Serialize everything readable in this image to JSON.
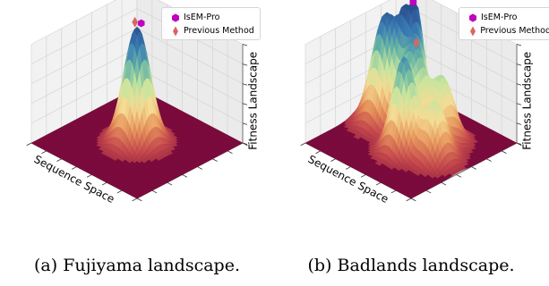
{
  "chart_data": [
    {
      "type": "surface3d",
      "caption": "(a) Fujiyama landscape.",
      "xlabel": "Sequence Space",
      "zlabel": "Fitness Landscape",
      "legend": {
        "placement": "top-right",
        "entries": [
          {
            "name": "IsEM-Pro",
            "marker": "hexagon",
            "color": "#c000c0"
          },
          {
            "name": "Previous Method",
            "marker": "thin-diamond",
            "color": "#d9665f"
          }
        ]
      },
      "peaks": [
        {
          "u": 0.5,
          "v": 0.5,
          "height": 1.0,
          "width": 0.09
        }
      ],
      "points": [
        {
          "series": "IsEM-Pro",
          "u": 0.52,
          "v": 0.48,
          "z": 1.0
        },
        {
          "series": "Previous Method",
          "u": 0.48,
          "v": 0.5,
          "z": 1.0
        }
      ],
      "colormap": [
        "#7b0a3c",
        "#c64a4c",
        "#e89a5e",
        "#f4dc94",
        "#c7e59e",
        "#6ab7a4",
        "#3a7cb4",
        "#2b4f8e"
      ],
      "grid": true
    },
    {
      "type": "surface3d",
      "caption": "(b) Badlands landscape.",
      "xlabel": "Sequence Space",
      "zlabel": "Fitness Landscape",
      "legend": {
        "placement": "top-right",
        "entries": [
          {
            "name": "IsEM-Pro",
            "marker": "hexagon",
            "color": "#c000c0"
          },
          {
            "name": "Previous Method",
            "marker": "thin-diamond",
            "color": "#d9665f"
          }
        ]
      },
      "peaks": [
        {
          "u": 0.2,
          "v": 0.45,
          "height": 0.92,
          "width": 0.09
        },
        {
          "u": 0.32,
          "v": 0.3,
          "height": 1.0,
          "width": 0.07
        },
        {
          "u": 0.45,
          "v": 0.42,
          "height": 0.72,
          "width": 0.08
        },
        {
          "u": 0.55,
          "v": 0.62,
          "height": 0.8,
          "width": 0.08
        },
        {
          "u": 0.65,
          "v": 0.35,
          "height": 0.55,
          "width": 0.08
        },
        {
          "u": 0.78,
          "v": 0.55,
          "height": 0.5,
          "width": 0.08
        }
      ],
      "points": [
        {
          "series": "IsEM-Pro",
          "u": 0.32,
          "v": 0.3,
          "z": 1.0
        },
        {
          "series": "Previous Method",
          "u": 0.47,
          "v": 0.42,
          "z": 0.78
        }
      ],
      "colormap": [
        "#7b0a3c",
        "#c64a4c",
        "#e89a5e",
        "#f4dc94",
        "#c7e59e",
        "#6ab7a4",
        "#3a7cb4",
        "#2b4f8e"
      ],
      "grid": true
    }
  ]
}
